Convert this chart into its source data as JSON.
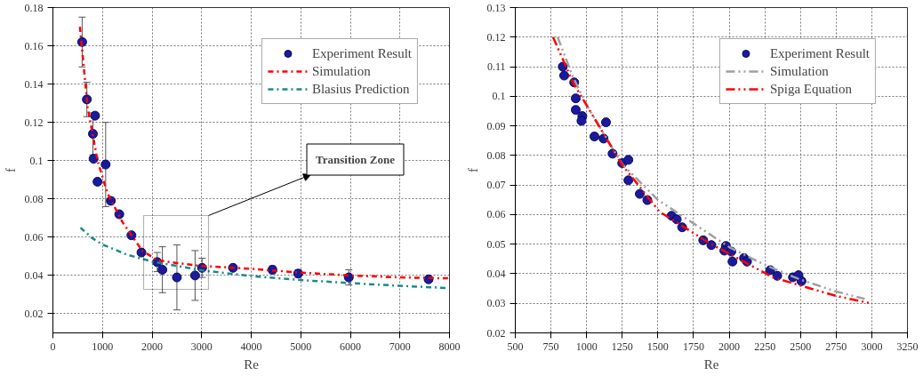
{
  "chart_data": [
    {
      "type": "scatter",
      "xlabel": "Re",
      "ylabel": "f",
      "xlim": [
        0,
        8000
      ],
      "ylim": [
        0.01,
        0.18
      ],
      "xticks": [
        0,
        1000,
        2000,
        3000,
        4000,
        5000,
        6000,
        7000,
        8000
      ],
      "yticks": [
        0.02,
        0.04,
        0.06,
        0.08,
        0.1,
        0.12,
        0.14,
        0.16,
        0.18
      ],
      "grid": true,
      "legend": "top right",
      "annotations": [
        "Transition Zone"
      ],
      "series": [
        {
          "name": "Experiment Result",
          "marker": "circle",
          "color": "#1a1a9c",
          "x": [
            590,
            685,
            850,
            807,
            820,
            1064,
            899,
            1169,
            1339,
            1584,
            1786,
            2104,
            2208,
            2501,
            2868,
            3009,
            3633,
            4428,
            4948,
            5969,
            7578
          ],
          "values": [
            0.162,
            0.132,
            0.1235,
            0.114,
            0.101,
            0.098,
            0.089,
            0.079,
            0.072,
            0.061,
            0.052,
            0.047,
            0.043,
            0.039,
            0.04,
            0.044,
            0.044,
            0.043,
            0.041,
            0.039,
            0.038
          ],
          "errors": [
            0.013,
            0.009,
            null,
            0.011,
            null,
            0.022,
            null,
            null,
            null,
            null,
            null,
            0.005,
            0.012,
            0.017,
            0.013,
            0.005,
            null,
            0.002,
            0.002,
            0.004,
            null
          ]
        },
        {
          "name": "Simulation",
          "type": "line",
          "line_style": "dashdot",
          "color": "#ff0000",
          "x": [
            545,
            700,
            900,
            1100,
            1400,
            1800,
            2100,
            2500,
            3000,
            4000,
            5000,
            6000,
            7000,
            8000
          ],
          "values": [
            0.17,
            0.128,
            0.1,
            0.083,
            0.068,
            0.053,
            0.048,
            0.0465,
            0.045,
            0.0435,
            0.0415,
            0.04,
            0.039,
            0.0385
          ]
        },
        {
          "name": "Blasius Prediction",
          "type": "line",
          "line_style": "dashdot",
          "color": "#1a8a8a",
          "x": [
            556,
            800,
            1000,
            1500,
            2000,
            3000,
            4000,
            5000,
            6000,
            7000,
            8000
          ],
          "values": [
            0.065,
            0.0594,
            0.0562,
            0.0508,
            0.0473,
            0.0427,
            0.0397,
            0.0376,
            0.036,
            0.0346,
            0.0334
          ]
        }
      ]
    },
    {
      "type": "scatter",
      "xlabel": "Re",
      "ylabel": "f",
      "xlim": [
        500,
        3250
      ],
      "ylim": [
        0.02,
        0.13
      ],
      "xticks": [
        500,
        750,
        1000,
        1250,
        1500,
        1750,
        2000,
        2250,
        2500,
        2750,
        3000,
        3250
      ],
      "yticks": [
        0.02,
        0.03,
        0.04,
        0.05,
        0.06,
        0.07,
        0.08,
        0.09,
        0.1,
        0.11,
        0.12,
        0.13
      ],
      "grid": true,
      "legend": "top right",
      "series": [
        {
          "name": "Experiment Result",
          "marker": "circle",
          "color": "#1a1a9c",
          "x": [
            833,
            843,
            913,
            924,
            924,
            970,
            964,
            1055,
            1119,
            1136,
            1182,
            1250,
            1293,
            1293,
            1373,
            1426,
            1596,
            1632,
            1670,
            1818,
            1875,
            1977,
            1966,
            2015,
            2023,
            2104,
            2125,
            2288,
            2337,
            2447,
            2486,
            2507
          ],
          "values": [
            0.11,
            0.107,
            0.1047,
            0.0993,
            0.0954,
            0.0933,
            0.0917,
            0.0864,
            0.0857,
            0.0912,
            0.0806,
            0.0774,
            0.0785,
            0.0716,
            0.067,
            0.0649,
            0.0596,
            0.0584,
            0.0557,
            0.0513,
            0.0497,
            0.0494,
            0.0478,
            0.0475,
            0.0441,
            0.0453,
            0.0441,
            0.0412,
            0.0393,
            0.0388,
            0.0395,
            0.0375
          ]
        },
        {
          "name": "Simulation",
          "type": "line",
          "line_style": "dashdotdot",
          "color": "#a0a0a0",
          "x": [
            797,
            900,
            1000,
            1250,
            1500,
            1750,
            2000,
            2250,
            2500,
            2750,
            2950
          ],
          "values": [
            0.12,
            0.107,
            0.097,
            0.077,
            0.065,
            0.057,
            0.049,
            0.043,
            0.038,
            0.034,
            0.0315
          ]
        },
        {
          "name": "Spiga Equation",
          "type": "line",
          "line_style": "dashdotdot",
          "color": "#ff0000",
          "x": [
            765,
            907,
            1000,
            1246,
            1511,
            1860,
            2305,
            2500,
            2750,
            2990
          ],
          "values": [
            0.12,
            0.1044,
            0.097,
            0.077,
            0.061,
            0.0504,
            0.0388,
            0.036,
            0.0325,
            0.03
          ]
        }
      ]
    }
  ]
}
